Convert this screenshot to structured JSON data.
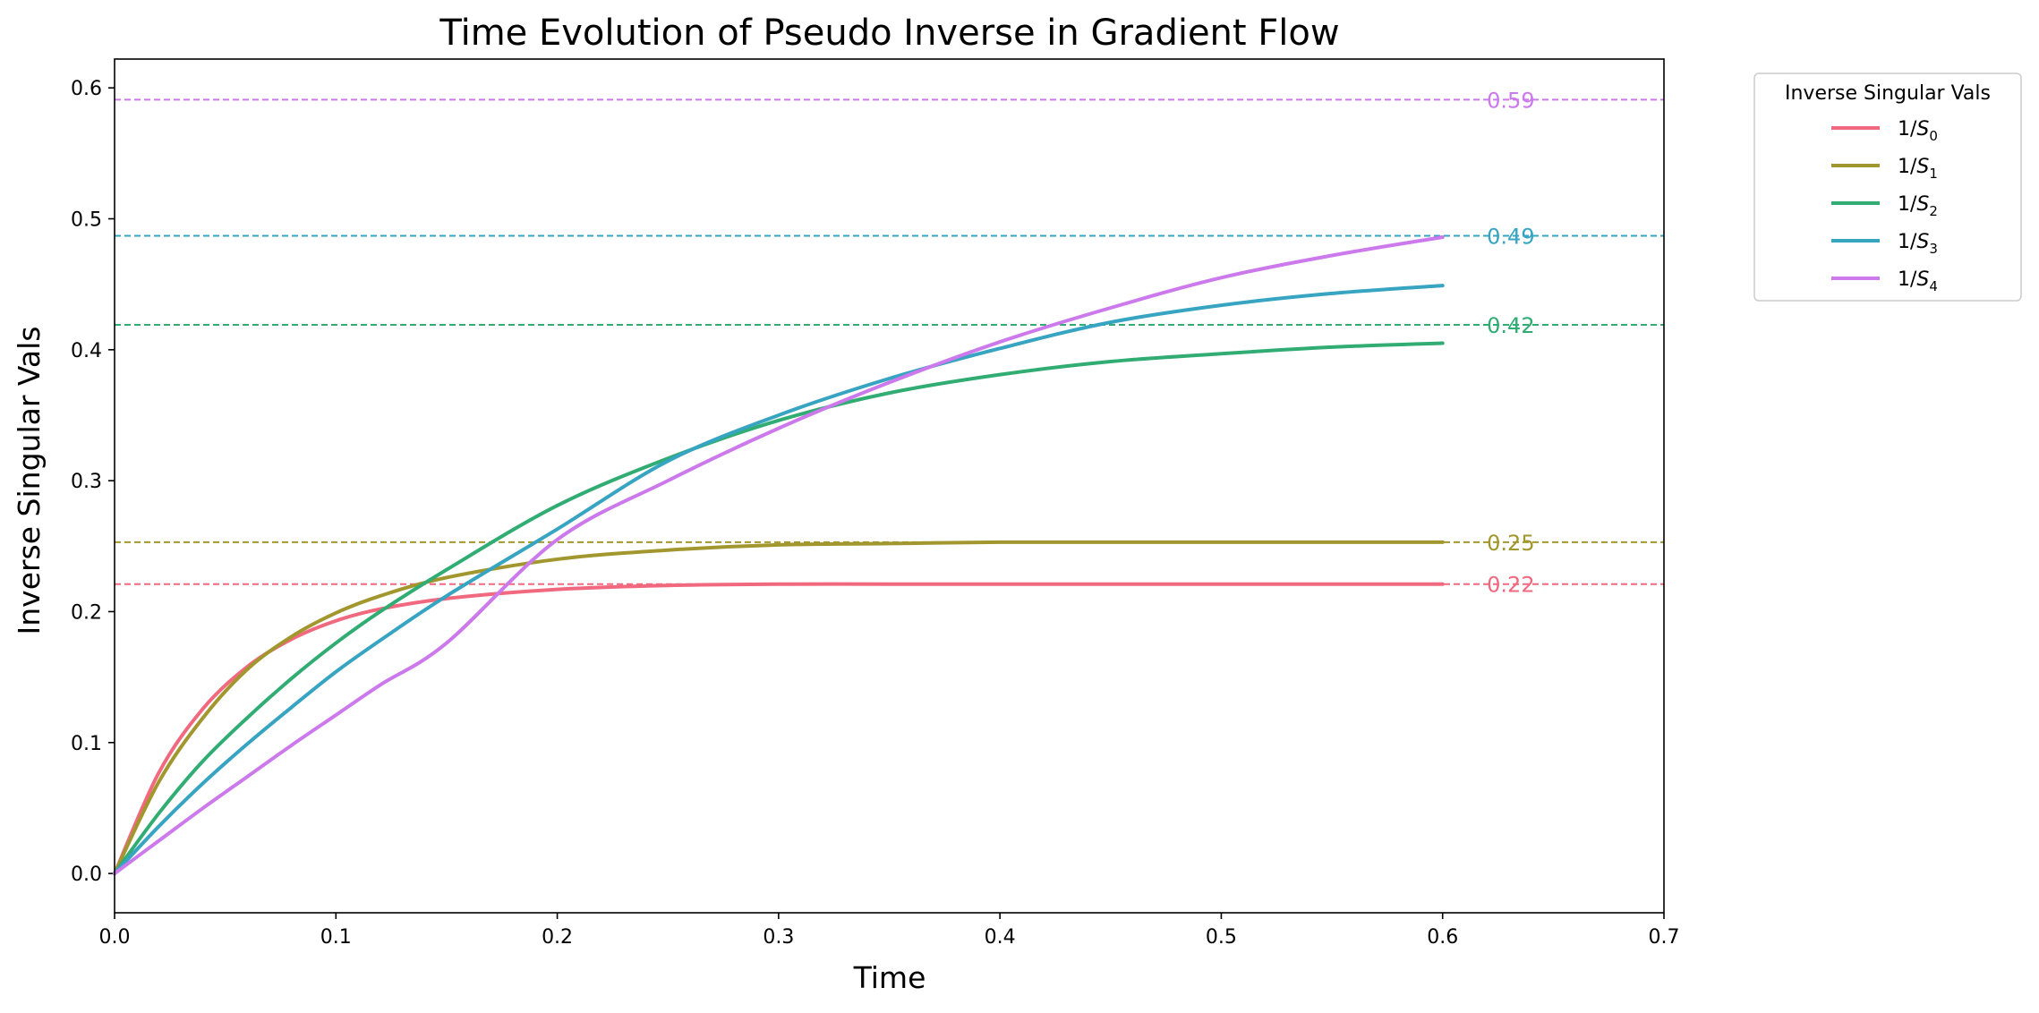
{
  "chart_data": {
    "type": "line",
    "title": "Time Evolution of Pseudo Inverse in Gradient Flow",
    "xlabel": "Time",
    "ylabel": "Inverse Singular Vals",
    "xlim": [
      0.0,
      0.7
    ],
    "ylim": [
      -0.03,
      0.622
    ],
    "xticks": [
      "0.0",
      "0.1",
      "0.2",
      "0.3",
      "0.4",
      "0.5",
      "0.6",
      "0.7"
    ],
    "yticks": [
      "0.0",
      "0.1",
      "0.2",
      "0.3",
      "0.4",
      "0.5",
      "0.6"
    ],
    "grid": false,
    "legend": {
      "title": "Inverse Singular Vals",
      "placement": "outside-top-right"
    },
    "series": [
      {
        "name": "1/S0",
        "name_base": "1/",
        "name_var": "S",
        "name_sub": "0",
        "color": "#f0697f",
        "x": [
          0.0,
          0.02,
          0.04,
          0.06,
          0.08,
          0.1,
          0.12,
          0.15,
          0.2,
          0.25,
          0.3,
          0.35,
          0.4,
          0.45,
          0.5,
          0.55,
          0.6
        ],
        "y": [
          0.0,
          0.077,
          0.126,
          0.158,
          0.179,
          0.193,
          0.202,
          0.21,
          0.217,
          0.22,
          0.221,
          0.221,
          0.221,
          0.221,
          0.221,
          0.221,
          0.221
        ],
        "asymptote": 0.221,
        "asymptote_label": "0.22"
      },
      {
        "name": "1/S1",
        "name_base": "1/",
        "name_var": "S",
        "name_sub": "1",
        "color": "#a2972e",
        "x": [
          0.0,
          0.02,
          0.04,
          0.06,
          0.08,
          0.1,
          0.12,
          0.15,
          0.2,
          0.25,
          0.3,
          0.35,
          0.4,
          0.45,
          0.5,
          0.55,
          0.6
        ],
        "y": [
          0.0,
          0.07,
          0.119,
          0.156,
          0.181,
          0.199,
          0.212,
          0.226,
          0.24,
          0.247,
          0.251,
          0.252,
          0.253,
          0.253,
          0.253,
          0.253,
          0.253
        ],
        "asymptote": 0.253,
        "asymptote_label": "0.25"
      },
      {
        "name": "1/S2",
        "name_base": "1/",
        "name_var": "S",
        "name_sub": "2",
        "color": "#31ad74",
        "x": [
          0.0,
          0.02,
          0.04,
          0.06,
          0.08,
          0.1,
          0.12,
          0.15,
          0.2,
          0.25,
          0.3,
          0.35,
          0.4,
          0.45,
          0.5,
          0.55,
          0.6
        ],
        "y": [
          0.0,
          0.046,
          0.086,
          0.119,
          0.149,
          0.176,
          0.2,
          0.232,
          0.281,
          0.317,
          0.346,
          0.367,
          0.381,
          0.391,
          0.397,
          0.402,
          0.405
        ],
        "asymptote": 0.419,
        "asymptote_label": "0.42"
      },
      {
        "name": "1/S3",
        "name_base": "1/",
        "name_var": "S",
        "name_sub": "3",
        "color": "#37a4c2",
        "x": [
          0.0,
          0.02,
          0.04,
          0.06,
          0.08,
          0.1,
          0.12,
          0.15,
          0.2,
          0.25,
          0.3,
          0.35,
          0.4,
          0.45,
          0.5,
          0.55,
          0.6
        ],
        "y": [
          0.0,
          0.036,
          0.069,
          0.099,
          0.127,
          0.154,
          0.178,
          0.212,
          0.263,
          0.315,
          0.35,
          0.378,
          0.401,
          0.421,
          0.434,
          0.443,
          0.449
        ],
        "asymptote": 0.487,
        "asymptote_label": "0.49"
      },
      {
        "name": "1/S4",
        "name_base": "1/",
        "name_var": "S",
        "name_sub": "4",
        "color": "#cc79ec",
        "x": [
          0.0,
          0.02,
          0.04,
          0.06,
          0.08,
          0.1,
          0.12,
          0.15,
          0.2,
          0.25,
          0.3,
          0.35,
          0.4,
          0.45,
          0.5,
          0.55,
          0.6
        ],
        "y": [
          0.0,
          0.025,
          0.05,
          0.074,
          0.098,
          0.121,
          0.144,
          0.176,
          0.255,
          0.3,
          0.34,
          0.375,
          0.406,
          0.432,
          0.455,
          0.472,
          0.486
        ],
        "asymptote": 0.591,
        "asymptote_label": "0.59"
      }
    ]
  }
}
